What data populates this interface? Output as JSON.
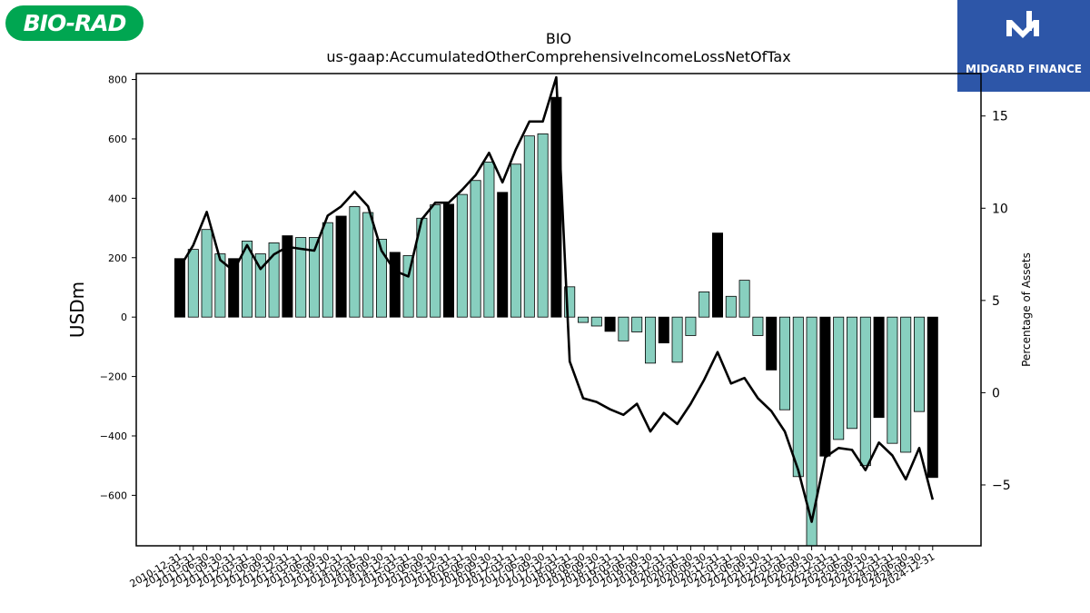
{
  "logos": {
    "left_text": "BIO-RAD",
    "right_text": "MIDGARD FINANCE",
    "left_color": "#00a651",
    "right_color": "#2d56a8"
  },
  "chart_data": {
    "type": "bar",
    "title": "BIO",
    "subtitle": "us-gaap:AccumulatedOtherComprehensiveIncomeLossNetOfTax",
    "ylabel": "USDm",
    "y2label": "Percentage of Assets",
    "ylim": [
      -770,
      820
    ],
    "y2lim": [
      -8.3,
      17.3
    ],
    "yticks": [
      -600,
      -400,
      -200,
      0,
      200,
      400,
      600,
      800
    ],
    "y2ticks": [
      -5,
      0,
      5,
      10,
      15
    ],
    "bar_color": "#88cfbf",
    "highlight_color": "#000000",
    "line_color": "#000000",
    "xtick_labels": [
      "2010-12-31",
      "2011-03-31",
      "2011-06-30",
      "2011-09-30",
      "2011-12-31",
      "2012-03-31",
      "2012-06-30",
      "2012-09-30",
      "2012-12-31",
      "2013-03-31",
      "2013-06-30",
      "2013-09-30",
      "2013-12-31",
      "2014-03-31",
      "2014-06-30",
      "2014-09-30",
      "2014-12-31",
      "2015-03-31",
      "2015-06-30",
      "2015-09-30",
      "2015-12-31",
      "2016-03-31",
      "2016-06-30",
      "2016-09-30",
      "2016-12-31",
      "2017-03-31",
      "2017-06-30",
      "2017-09-30",
      "2017-12-31",
      "2018-03-31",
      "2018-06-30",
      "2018-09-30",
      "2018-12-31",
      "2019-03-31",
      "2019-06-30",
      "2019-09-30",
      "2019-12-31",
      "2020-03-31",
      "2020-06-30",
      "2020-09-30",
      "2020-12-31",
      "2021-03-31",
      "2021-06-30",
      "2021-09-30",
      "2021-12-31",
      "2022-03-31",
      "2022-06-30",
      "2022-09-30",
      "2022-12-31",
      "2023-03-31",
      "2023-06-30",
      "2023-09-30",
      "2023-12-31",
      "2024-03-31",
      "2024-06-30",
      "2024-09-30",
      "2024-12-31"
    ],
    "series": [
      {
        "values": [
          197,
          228,
          295,
          213,
          197,
          256,
          213,
          250,
          274,
          268,
          268,
          318,
          340,
          372,
          352,
          262,
          218,
          207,
          333,
          378,
          380,
          413,
          460,
          522,
          420,
          515,
          610,
          617,
          740,
          102,
          -18,
          -30,
          -48,
          -80,
          -50,
          -155,
          -87,
          -152,
          -62,
          85,
          283,
          70,
          124,
          -62,
          -178,
          -312,
          -537,
          -770,
          -468,
          -412,
          -375,
          -500,
          -338,
          -425,
          -455,
          -318,
          -540
        ],
        "highlight": [
          true,
          false,
          false,
          false,
          true,
          false,
          false,
          false,
          true,
          false,
          false,
          false,
          true,
          false,
          false,
          false,
          true,
          false,
          false,
          false,
          true,
          false,
          false,
          false,
          true,
          false,
          false,
          false,
          true,
          false,
          false,
          false,
          true,
          false,
          false,
          false,
          true,
          false,
          false,
          false,
          true,
          false,
          false,
          false,
          true,
          false,
          false,
          false,
          true,
          false,
          false,
          false,
          true,
          false,
          false,
          false,
          true
        ]
      },
      {
        "axis": "secondary",
        "values": [
          6.8,
          8.0,
          9.8,
          7.2,
          6.6,
          8.0,
          6.7,
          7.5,
          7.9,
          7.8,
          7.7,
          9.6,
          10.1,
          10.9,
          10.1,
          7.7,
          6.6,
          6.3,
          9.4,
          10.3,
          10.3,
          11.0,
          11.8,
          13.0,
          11.4,
          13.2,
          14.7,
          14.7,
          17.1,
          1.7,
          -0.3,
          -0.5,
          -0.9,
          -1.2,
          -0.6,
          -2.1,
          -1.1,
          -1.7,
          -0.6,
          0.7,
          2.2,
          0.5,
          0.8,
          -0.3,
          -1.0,
          -2.1,
          -4.2,
          -7.0,
          -3.5,
          -3.0,
          -3.1,
          -4.2,
          -2.7,
          -3.4,
          -4.7,
          -3.0,
          -5.8
        ]
      }
    ]
  }
}
